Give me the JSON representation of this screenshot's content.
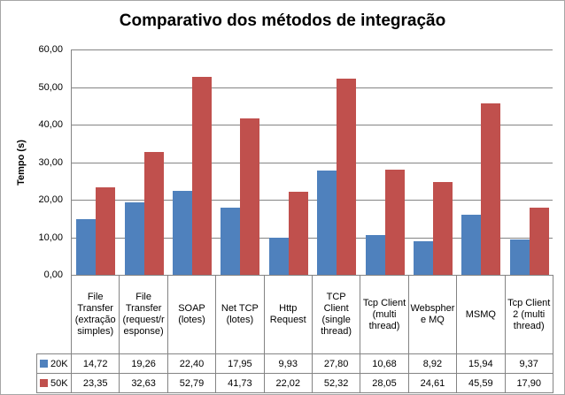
{
  "chart_data": {
    "type": "bar",
    "title": "Comparativo dos métodos de integração",
    "ylabel": "Tempo (s)",
    "xlabel": "",
    "ylim": [
      0,
      60
    ],
    "ytick_labels": [
      "60,00",
      "50,00",
      "40,00",
      "30,00",
      "20,00",
      "10,00",
      "0,00"
    ],
    "grid": true,
    "legend_position": "table-left",
    "categories": [
      "File Transfer (extração simples)",
      "File Transfer (request/response)",
      "SOAP (lotes)",
      "Net TCP (lotes)",
      "Http Request",
      "TCP Client (single thread)",
      "Tcp Client (multi thread)",
      "Websphere MQ",
      "MSMQ",
      "Tcp Client 2 (multi thread)"
    ],
    "series": [
      {
        "name": "20K",
        "color": "#4F81BD",
        "values": [
          14.72,
          19.26,
          22.4,
          17.95,
          9.93,
          27.8,
          10.68,
          8.92,
          15.94,
          9.37
        ],
        "values_display": [
          "14,72",
          "19,26",
          "22,40",
          "17,95",
          "9,93",
          "27,80",
          "10,68",
          "8,92",
          "15,94",
          "9,37"
        ]
      },
      {
        "name": "50K",
        "color": "#C0504D",
        "values": [
          23.35,
          32.63,
          52.79,
          41.73,
          22.02,
          52.32,
          28.05,
          24.61,
          45.59,
          17.9
        ],
        "values_display": [
          "23,35",
          "32,63",
          "52,79",
          "41,73",
          "22,02",
          "52,32",
          "28,05",
          "24,61",
          "45,59",
          "17,90"
        ]
      }
    ],
    "colors": {
      "grid": "#848484",
      "table_border": "#848484",
      "frame_border": "#A6A6A6",
      "text": "#000000",
      "background": "#FFFFFF"
    }
  }
}
